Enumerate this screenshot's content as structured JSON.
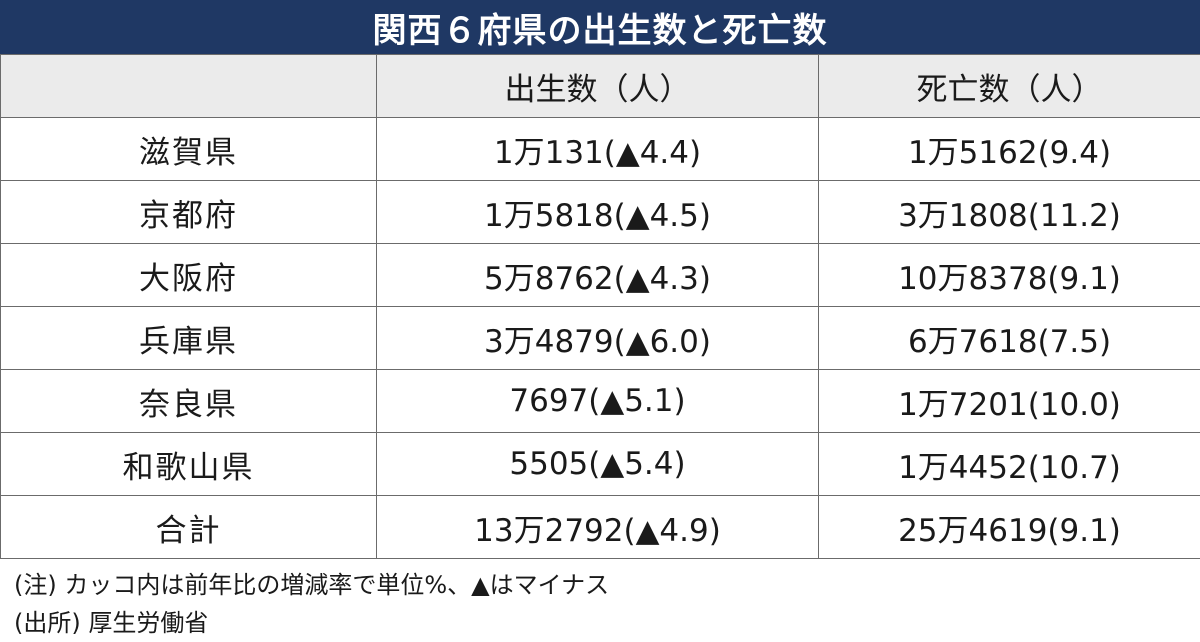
{
  "chart_data": {
    "type": "table",
    "title": "関西６府県の出生数と死亡数",
    "columns": [
      "",
      "出生数（人）",
      "死亡数（人）"
    ],
    "rows": [
      {
        "prefecture": "滋賀県",
        "births": "1万131(▲4.4)",
        "deaths": "1万5162(9.4)"
      },
      {
        "prefecture": "京都府",
        "births": "1万5818(▲4.5)",
        "deaths": "3万1808(11.2)"
      },
      {
        "prefecture": "大阪府",
        "births": "5万8762(▲4.3)",
        "deaths": "10万8378(9.1)"
      },
      {
        "prefecture": "兵庫県",
        "births": "3万4879(▲6.0)",
        "deaths": "6万7618(7.5)"
      },
      {
        "prefecture": "奈良県",
        "births": "7697(▲5.1)",
        "deaths": "1万7201(10.0)"
      },
      {
        "prefecture": "和歌山県",
        "births": "5505(▲5.4)",
        "deaths": "1万4452(10.7)"
      },
      {
        "prefecture": "合計",
        "births": "13万2792(▲4.9)",
        "deaths": "25万4619(9.1)"
      }
    ]
  },
  "notes": {
    "note": "(注) カッコ内は前年比の増減率で単位%、▲はマイナス",
    "source": "(出所) 厚生労働省"
  },
  "colors": {
    "title_bg": "#1f3864",
    "header_bg": "#ebebeb",
    "border": "#6b6b6b"
  }
}
